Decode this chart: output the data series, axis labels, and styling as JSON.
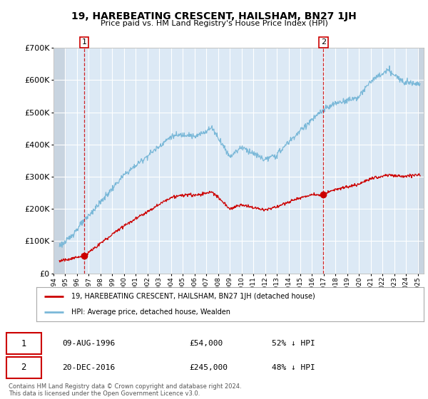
{
  "title": "19, HAREBEATING CRESCENT, HAILSHAM, BN27 1JH",
  "subtitle": "Price paid vs. HM Land Registry's House Price Index (HPI)",
  "xlim_start": 1994.0,
  "xlim_end": 2025.5,
  "ylim_min": 0,
  "ylim_max": 700000,
  "yticks": [
    0,
    100000,
    200000,
    300000,
    400000,
    500000,
    600000,
    700000
  ],
  "ytick_labels": [
    "£0",
    "£100K",
    "£200K",
    "£300K",
    "£400K",
    "£500K",
    "£600K",
    "£700K"
  ],
  "hpi_color": "#7ab8d8",
  "price_color": "#cc0000",
  "point1_x": 1996.61,
  "point1_y": 54000,
  "point2_x": 2016.97,
  "point2_y": 245000,
  "legend_line1": "19, HAREBEATING CRESCENT, HAILSHAM, BN27 1JH (detached house)",
  "legend_line2": "HPI: Average price, detached house, Wealden",
  "table_row1_num": "1",
  "table_row1_date": "09-AUG-1996",
  "table_row1_price": "£54,000",
  "table_row1_hpi": "52% ↓ HPI",
  "table_row2_num": "2",
  "table_row2_date": "20-DEC-2016",
  "table_row2_price": "£245,000",
  "table_row2_hpi": "48% ↓ HPI",
  "footnote": "Contains HM Land Registry data © Crown copyright and database right 2024.\nThis data is licensed under the Open Government Licence v3.0.",
  "bg_color": "#ffffff",
  "plot_bg_color": "#dce9f5",
  "hatch_color": "#c8d4e0",
  "grid_color": "#ffffff",
  "hatch_left_end": 1995.0,
  "hatch_right_start": 2025.0
}
